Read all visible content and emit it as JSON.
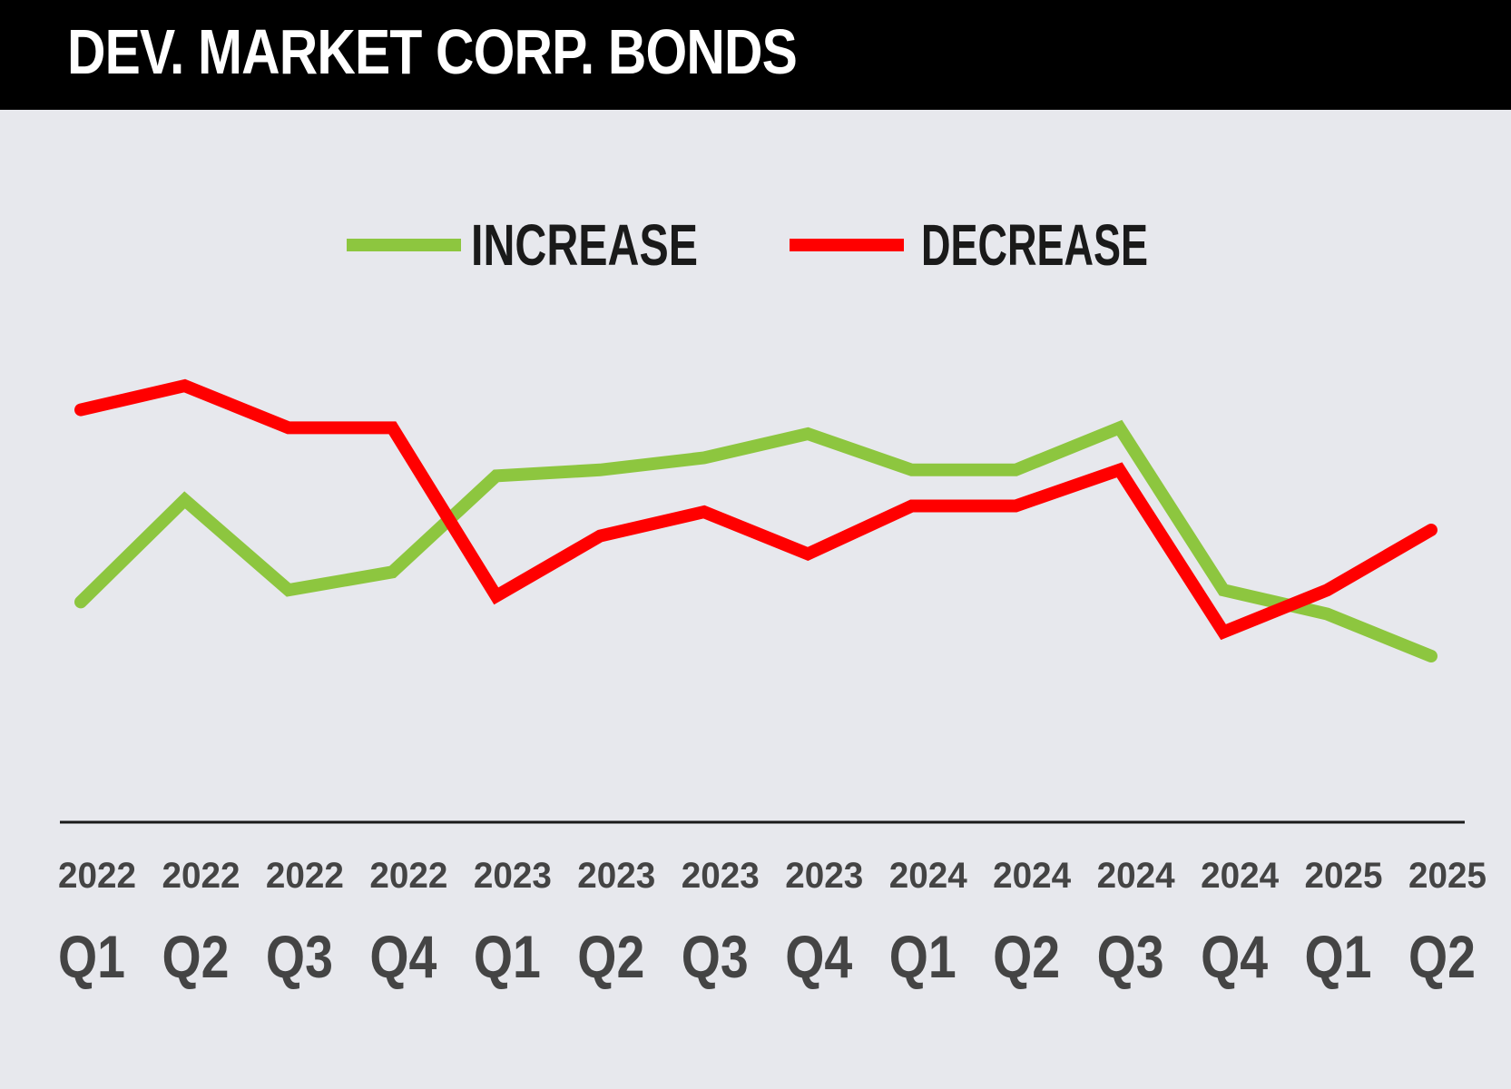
{
  "header": {
    "title": "DEV. MARKET CORP. BONDS"
  },
  "colors": {
    "background": "#e7e8ed",
    "header": "#000000",
    "increase": "#8dc63f",
    "decrease": "#ff0000",
    "axis": "#1a1a1a",
    "labels": "#444444"
  },
  "chart_data": {
    "type": "line",
    "categories": [
      {
        "year": "2022",
        "quarter": "Q1"
      },
      {
        "year": "2022",
        "quarter": "Q2"
      },
      {
        "year": "2022",
        "quarter": "Q3"
      },
      {
        "year": "2022",
        "quarter": "Q4"
      },
      {
        "year": "2023",
        "quarter": "Q1"
      },
      {
        "year": "2023",
        "quarter": "Q2"
      },
      {
        "year": "2023",
        "quarter": "Q3"
      },
      {
        "year": "2023",
        "quarter": "Q4"
      },
      {
        "year": "2024",
        "quarter": "Q1"
      },
      {
        "year": "2024",
        "quarter": "Q2"
      },
      {
        "year": "2024",
        "quarter": "Q3"
      },
      {
        "year": "2024",
        "quarter": "Q4"
      },
      {
        "year": "2025",
        "quarter": "Q1"
      },
      {
        "year": "2025",
        "quarter": "Q2"
      }
    ],
    "series": [
      {
        "name": "INCREASE",
        "color": "#8dc63f",
        "values": [
          30,
          47,
          32,
          35,
          51,
          52,
          54,
          58,
          52,
          52,
          59,
          32,
          28,
          21
        ]
      },
      {
        "name": "DECREASE",
        "color": "#ff0000",
        "values": [
          62,
          66,
          59,
          59,
          31,
          41,
          45,
          38,
          46,
          46,
          52,
          25,
          32,
          42
        ]
      }
    ],
    "ylim": [
      0,
      100
    ],
    "grid": false,
    "legend": "top-center",
    "title": "DEV. MARKET CORP. BONDS",
    "xlabel": "",
    "ylabel": ""
  }
}
